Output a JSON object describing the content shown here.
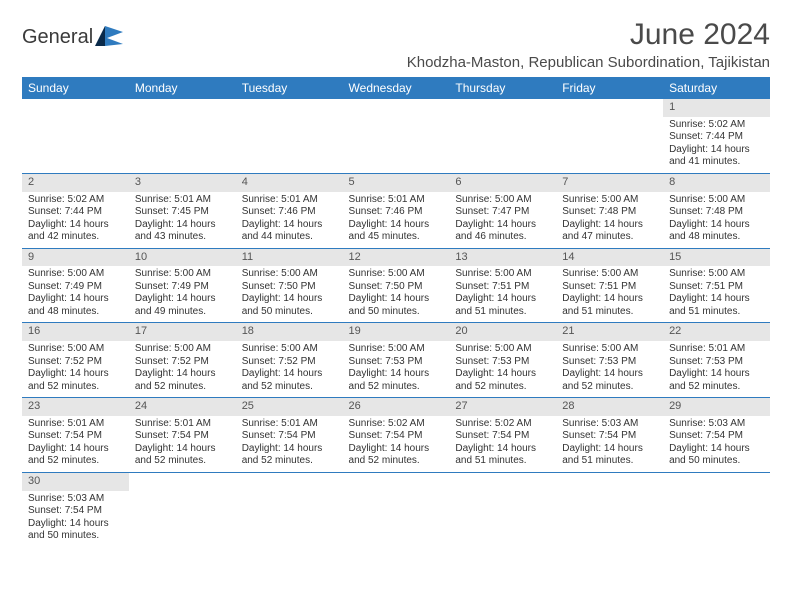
{
  "logo": {
    "name": "General",
    "accent_color": "#2f7bbf"
  },
  "title": "June 2024",
  "location": "Khodzha-Maston, Republican Subordination, Tajikistan",
  "header_bg": "#2f7bbf",
  "header_fg": "#ffffff",
  "daynum_bg": "#e6e6e6",
  "row_border": "#2f7bbf",
  "days_of_week": [
    "Sunday",
    "Monday",
    "Tuesday",
    "Wednesday",
    "Thursday",
    "Friday",
    "Saturday"
  ],
  "weeks": [
    [
      null,
      null,
      null,
      null,
      null,
      null,
      {
        "n": "1",
        "sunrise": "Sunrise: 5:02 AM",
        "sunset": "Sunset: 7:44 PM",
        "day1": "Daylight: 14 hours",
        "day2": "and 41 minutes."
      }
    ],
    [
      {
        "n": "2",
        "sunrise": "Sunrise: 5:02 AM",
        "sunset": "Sunset: 7:44 PM",
        "day1": "Daylight: 14 hours",
        "day2": "and 42 minutes."
      },
      {
        "n": "3",
        "sunrise": "Sunrise: 5:01 AM",
        "sunset": "Sunset: 7:45 PM",
        "day1": "Daylight: 14 hours",
        "day2": "and 43 minutes."
      },
      {
        "n": "4",
        "sunrise": "Sunrise: 5:01 AM",
        "sunset": "Sunset: 7:46 PM",
        "day1": "Daylight: 14 hours",
        "day2": "and 44 minutes."
      },
      {
        "n": "5",
        "sunrise": "Sunrise: 5:01 AM",
        "sunset": "Sunset: 7:46 PM",
        "day1": "Daylight: 14 hours",
        "day2": "and 45 minutes."
      },
      {
        "n": "6",
        "sunrise": "Sunrise: 5:00 AM",
        "sunset": "Sunset: 7:47 PM",
        "day1": "Daylight: 14 hours",
        "day2": "and 46 minutes."
      },
      {
        "n": "7",
        "sunrise": "Sunrise: 5:00 AM",
        "sunset": "Sunset: 7:48 PM",
        "day1": "Daylight: 14 hours",
        "day2": "and 47 minutes."
      },
      {
        "n": "8",
        "sunrise": "Sunrise: 5:00 AM",
        "sunset": "Sunset: 7:48 PM",
        "day1": "Daylight: 14 hours",
        "day2": "and 48 minutes."
      }
    ],
    [
      {
        "n": "9",
        "sunrise": "Sunrise: 5:00 AM",
        "sunset": "Sunset: 7:49 PM",
        "day1": "Daylight: 14 hours",
        "day2": "and 48 minutes."
      },
      {
        "n": "10",
        "sunrise": "Sunrise: 5:00 AM",
        "sunset": "Sunset: 7:49 PM",
        "day1": "Daylight: 14 hours",
        "day2": "and 49 minutes."
      },
      {
        "n": "11",
        "sunrise": "Sunrise: 5:00 AM",
        "sunset": "Sunset: 7:50 PM",
        "day1": "Daylight: 14 hours",
        "day2": "and 50 minutes."
      },
      {
        "n": "12",
        "sunrise": "Sunrise: 5:00 AM",
        "sunset": "Sunset: 7:50 PM",
        "day1": "Daylight: 14 hours",
        "day2": "and 50 minutes."
      },
      {
        "n": "13",
        "sunrise": "Sunrise: 5:00 AM",
        "sunset": "Sunset: 7:51 PM",
        "day1": "Daylight: 14 hours",
        "day2": "and 51 minutes."
      },
      {
        "n": "14",
        "sunrise": "Sunrise: 5:00 AM",
        "sunset": "Sunset: 7:51 PM",
        "day1": "Daylight: 14 hours",
        "day2": "and 51 minutes."
      },
      {
        "n": "15",
        "sunrise": "Sunrise: 5:00 AM",
        "sunset": "Sunset: 7:51 PM",
        "day1": "Daylight: 14 hours",
        "day2": "and 51 minutes."
      }
    ],
    [
      {
        "n": "16",
        "sunrise": "Sunrise: 5:00 AM",
        "sunset": "Sunset: 7:52 PM",
        "day1": "Daylight: 14 hours",
        "day2": "and 52 minutes."
      },
      {
        "n": "17",
        "sunrise": "Sunrise: 5:00 AM",
        "sunset": "Sunset: 7:52 PM",
        "day1": "Daylight: 14 hours",
        "day2": "and 52 minutes."
      },
      {
        "n": "18",
        "sunrise": "Sunrise: 5:00 AM",
        "sunset": "Sunset: 7:52 PM",
        "day1": "Daylight: 14 hours",
        "day2": "and 52 minutes."
      },
      {
        "n": "19",
        "sunrise": "Sunrise: 5:00 AM",
        "sunset": "Sunset: 7:53 PM",
        "day1": "Daylight: 14 hours",
        "day2": "and 52 minutes."
      },
      {
        "n": "20",
        "sunrise": "Sunrise: 5:00 AM",
        "sunset": "Sunset: 7:53 PM",
        "day1": "Daylight: 14 hours",
        "day2": "and 52 minutes."
      },
      {
        "n": "21",
        "sunrise": "Sunrise: 5:00 AM",
        "sunset": "Sunset: 7:53 PM",
        "day1": "Daylight: 14 hours",
        "day2": "and 52 minutes."
      },
      {
        "n": "22",
        "sunrise": "Sunrise: 5:01 AM",
        "sunset": "Sunset: 7:53 PM",
        "day1": "Daylight: 14 hours",
        "day2": "and 52 minutes."
      }
    ],
    [
      {
        "n": "23",
        "sunrise": "Sunrise: 5:01 AM",
        "sunset": "Sunset: 7:54 PM",
        "day1": "Daylight: 14 hours",
        "day2": "and 52 minutes."
      },
      {
        "n": "24",
        "sunrise": "Sunrise: 5:01 AM",
        "sunset": "Sunset: 7:54 PM",
        "day1": "Daylight: 14 hours",
        "day2": "and 52 minutes."
      },
      {
        "n": "25",
        "sunrise": "Sunrise: 5:01 AM",
        "sunset": "Sunset: 7:54 PM",
        "day1": "Daylight: 14 hours",
        "day2": "and 52 minutes."
      },
      {
        "n": "26",
        "sunrise": "Sunrise: 5:02 AM",
        "sunset": "Sunset: 7:54 PM",
        "day1": "Daylight: 14 hours",
        "day2": "and 52 minutes."
      },
      {
        "n": "27",
        "sunrise": "Sunrise: 5:02 AM",
        "sunset": "Sunset: 7:54 PM",
        "day1": "Daylight: 14 hours",
        "day2": "and 51 minutes."
      },
      {
        "n": "28",
        "sunrise": "Sunrise: 5:03 AM",
        "sunset": "Sunset: 7:54 PM",
        "day1": "Daylight: 14 hours",
        "day2": "and 51 minutes."
      },
      {
        "n": "29",
        "sunrise": "Sunrise: 5:03 AM",
        "sunset": "Sunset: 7:54 PM",
        "day1": "Daylight: 14 hours",
        "day2": "and 50 minutes."
      }
    ],
    [
      {
        "n": "30",
        "sunrise": "Sunrise: 5:03 AM",
        "sunset": "Sunset: 7:54 PM",
        "day1": "Daylight: 14 hours",
        "day2": "and 50 minutes."
      },
      null,
      null,
      null,
      null,
      null,
      null
    ]
  ]
}
